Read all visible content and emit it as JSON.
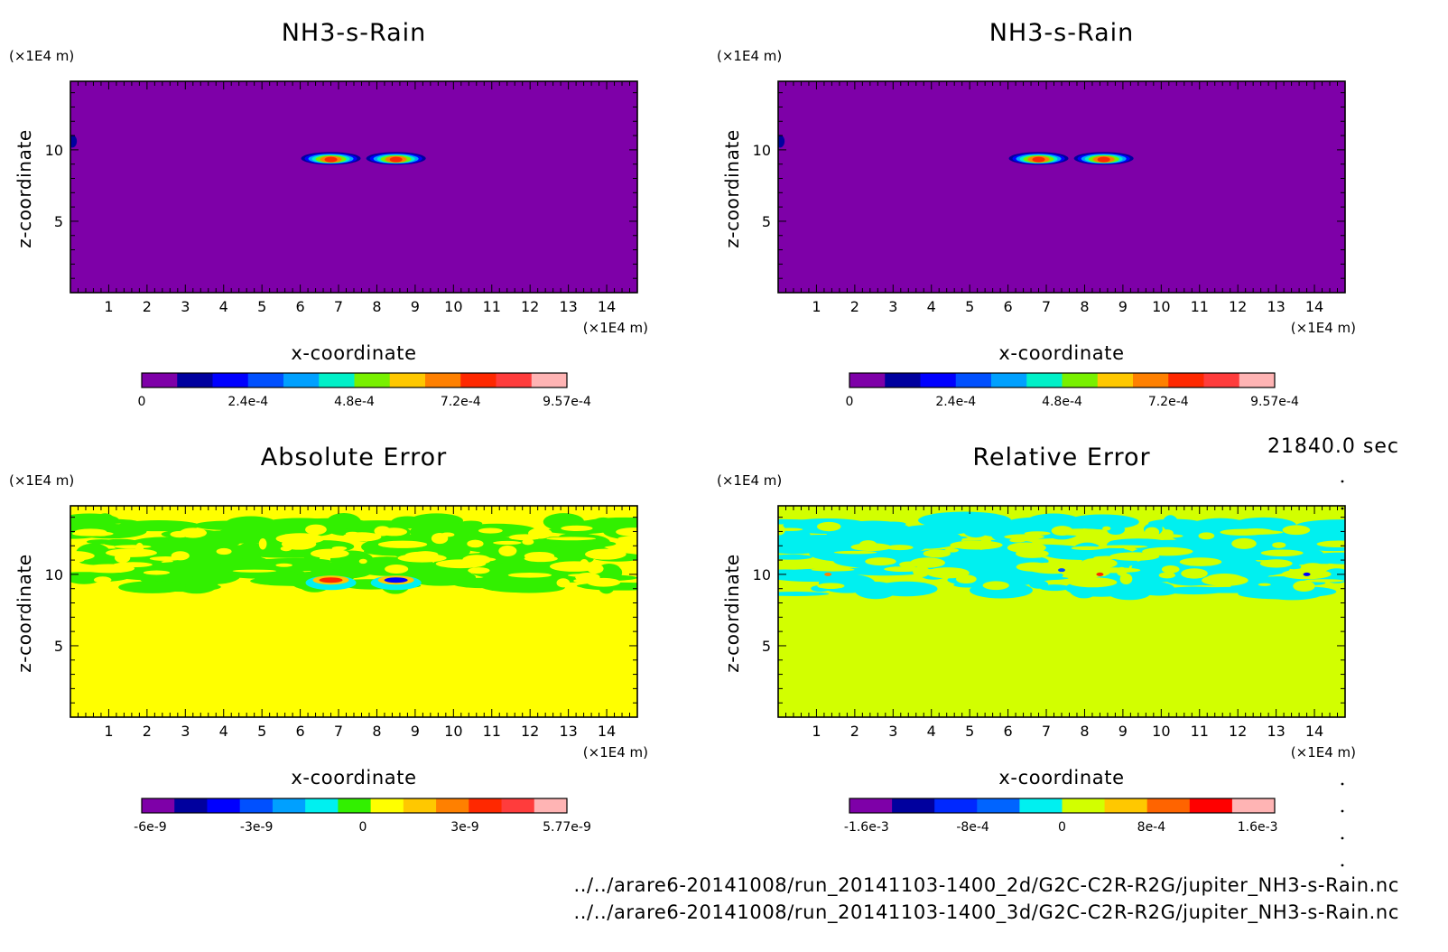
{
  "time_label": "21840.0 sec",
  "files": [
    "../../arare6-20141008/run_20141103-1400_2d/G2C-C2R-R2G/jupiter_NH3-s-Rain.nc",
    "../../arare6-20141008/run_20141103-1400_3d/G2C-C2R-R2G/jupiter_NH3-s-Rain.nc"
  ],
  "chart_data": [
    {
      "type": "heatmap",
      "title": "NH3-s-Rain",
      "xlabel": "x-coordinate",
      "ylabel": "z-coordinate",
      "x_unit": "(×1E4 m)",
      "y_unit": "(×1E4 m)",
      "xlim": [
        0,
        14.8
      ],
      "ylim": [
        0,
        14.8
      ],
      "x_ticks": [
        "1",
        "2",
        "3",
        "4",
        "5",
        "6",
        "7",
        "8",
        "9",
        "10",
        "11",
        "12",
        "13",
        "14"
      ],
      "y_ticks": [
        "5",
        "10"
      ],
      "background": "#7e00a8",
      "features": [
        {
          "kind": "blob",
          "x": 6.8,
          "z": 9.4,
          "level": 7
        },
        {
          "kind": "blob",
          "x": 8.5,
          "z": 9.4,
          "level": 7
        },
        {
          "kind": "edge-dot",
          "x": 0.05,
          "z": 10.6,
          "level": 1
        }
      ],
      "colorbar": {
        "colors": [
          "#7e00a8",
          "#00009e",
          "#0000ff",
          "#0050ff",
          "#00a0ff",
          "#00f0c8",
          "#78f000",
          "#ffc800",
          "#ff8000",
          "#ff2800",
          "#ff3c3c",
          "#ffb4b4"
        ],
        "labels": [
          "0",
          "2.4e-4",
          "4.8e-4",
          "7.2e-4",
          "9.57e-4"
        ],
        "label_positions": [
          0,
          0.25,
          0.5,
          0.75,
          1.0
        ]
      }
    },
    {
      "type": "heatmap",
      "title": "NH3-s-Rain",
      "xlabel": "x-coordinate",
      "ylabel": "z-coordinate",
      "x_unit": "(×1E4 m)",
      "y_unit": "(×1E4 m)",
      "xlim": [
        0,
        14.8
      ],
      "ylim": [
        0,
        14.8
      ],
      "x_ticks": [
        "1",
        "2",
        "3",
        "4",
        "5",
        "6",
        "7",
        "8",
        "9",
        "10",
        "11",
        "12",
        "13",
        "14"
      ],
      "y_ticks": [
        "5",
        "10"
      ],
      "background": "#7e00a8",
      "features": [
        {
          "kind": "blob",
          "x": 6.8,
          "z": 9.4,
          "level": 7
        },
        {
          "kind": "blob",
          "x": 8.5,
          "z": 9.4,
          "level": 7
        },
        {
          "kind": "edge-dot",
          "x": 0.05,
          "z": 10.6,
          "level": 1
        }
      ],
      "colorbar": {
        "colors": [
          "#7e00a8",
          "#00009e",
          "#0000ff",
          "#0050ff",
          "#00a0ff",
          "#00f0c8",
          "#78f000",
          "#ffc800",
          "#ff8000",
          "#ff2800",
          "#ff3c3c",
          "#ffb4b4"
        ],
        "labels": [
          "0",
          "2.4e-4",
          "4.8e-4",
          "7.2e-4",
          "9.57e-4"
        ],
        "label_positions": [
          0,
          0.25,
          0.5,
          0.75,
          1.0
        ]
      }
    },
    {
      "type": "heatmap",
      "title": "Absolute Error",
      "xlabel": "x-coordinate",
      "ylabel": "z-coordinate",
      "x_unit": "(×1E4 m)",
      "y_unit": "(×1E4 m)",
      "xlim": [
        0,
        14.8
      ],
      "ylim": [
        0,
        14.8
      ],
      "x_ticks": [
        "1",
        "2",
        "3",
        "4",
        "5",
        "6",
        "7",
        "8",
        "9",
        "10",
        "11",
        "12",
        "13",
        "14"
      ],
      "y_ticks": [
        "5",
        "10"
      ],
      "background": "#ffff00",
      "patch_color": "#32f000",
      "patch_band": [
        9.0,
        13.8
      ],
      "features": [
        {
          "kind": "dipole",
          "x": 6.8,
          "z": 9.6,
          "color": "#ff2800"
        },
        {
          "kind": "dipole",
          "x": 8.5,
          "z": 9.6,
          "color": "#0000ff"
        }
      ],
      "colorbar": {
        "colors": [
          "#7e00a8",
          "#00009e",
          "#0000ff",
          "#0050ff",
          "#00a0ff",
          "#00f0f0",
          "#32f000",
          "#ffff00",
          "#ffc800",
          "#ff8000",
          "#ff2800",
          "#ff3c3c",
          "#ffb4b4"
        ],
        "labels": [
          "-6e-9",
          "-3e-9",
          "0",
          "3e-9",
          "5.77e-9"
        ],
        "label_positions": [
          0.02,
          0.27,
          0.52,
          0.76,
          1.0
        ]
      }
    },
    {
      "type": "heatmap",
      "title": "Relative Error",
      "xlabel": "x-coordinate",
      "ylabel": "z-coordinate",
      "x_unit": "(×1E4 m)",
      "y_unit": "(×1E4 m)",
      "xlim": [
        0,
        14.8
      ],
      "ylim": [
        0,
        14.8
      ],
      "x_ticks": [
        "1",
        "2",
        "3",
        "4",
        "5",
        "6",
        "7",
        "8",
        "9",
        "10",
        "11",
        "12",
        "13",
        "14"
      ],
      "y_ticks": [
        "5",
        "10"
      ],
      "background": "#d2ff00",
      "patch_color": "#00f0f0",
      "patch_band": [
        8.6,
        13.8
      ],
      "features": [
        {
          "kind": "speck",
          "x": 8.4,
          "z": 10.0,
          "color": "#ff2800"
        },
        {
          "kind": "speck",
          "x": 7.4,
          "z": 10.3,
          "color": "#0050ff"
        },
        {
          "kind": "speck",
          "x": 13.8,
          "z": 10.0,
          "color": "#0000ff"
        },
        {
          "kind": "speck",
          "x": 1.3,
          "z": 10.0,
          "color": "#ff8000"
        }
      ],
      "colorbar": {
        "colors": [
          "#7e00a8",
          "#00009e",
          "#0028ff",
          "#0064ff",
          "#00f0f0",
          "#d2ff00",
          "#ffc800",
          "#ff6400",
          "#ff0000",
          "#ffb4b4"
        ],
        "labels": [
          "-1.6e-3",
          "-8e-4",
          "0",
          "8e-4",
          "1.6e-3"
        ],
        "label_positions": [
          0.04,
          0.29,
          0.5,
          0.71,
          0.96
        ]
      }
    }
  ]
}
